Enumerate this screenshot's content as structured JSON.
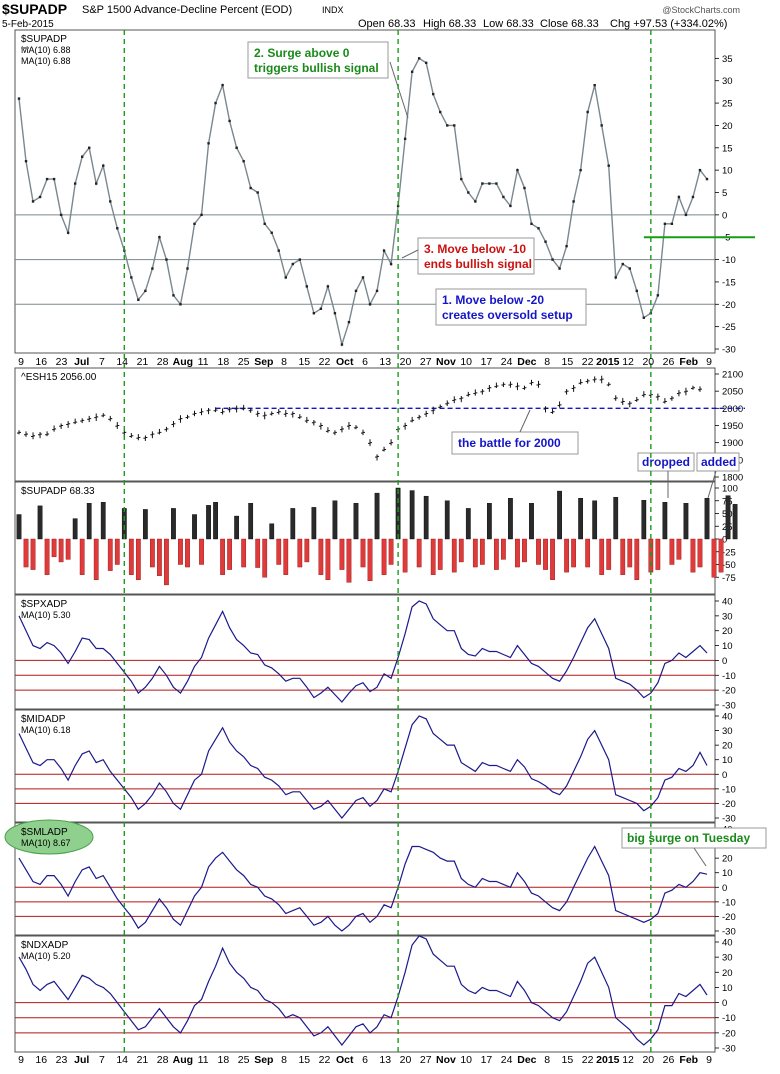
{
  "header": {
    "symbol": "$SUPADP",
    "description": "S&P 1500 Advance-Decline Percent (EOD)",
    "exchange": "INDX",
    "date": "5-Feb-2015",
    "open": "Open 68.33",
    "high": "High 68.33",
    "low": "Low 68.33",
    "close": "Close 68.33",
    "chg": "Chg +97.53 (+334.02%)",
    "watermark": "@StockCharts.com"
  },
  "x_axis": {
    "labels": [
      "9",
      "16",
      "23",
      "Jul",
      "7",
      "14",
      "21",
      "28",
      "Aug",
      "11",
      "18",
      "25",
      "Sep",
      "8",
      "15",
      "22",
      "Oct",
      "6",
      "13",
      "20",
      "27",
      "Nov",
      "10",
      "17",
      "24",
      "Dec",
      "8",
      "15",
      "22",
      "2015",
      "12",
      "20",
      "26",
      "Feb",
      "9"
    ],
    "bold": [
      "Jul",
      "Aug",
      "Sep",
      "Oct",
      "Nov",
      "Dec",
      "2015",
      "Feb"
    ]
  },
  "vlines": [
    15,
    54,
    90
  ],
  "colors": {
    "gray_line": "#7a878e",
    "navy_line": "#1a1a8c",
    "green_dash": "#1a9c1a",
    "blue_dash": "#1515c8",
    "red_bar": "#e03a3a",
    "black_bar": "#2a2a2a",
    "red_hline": "#b01818",
    "green_bubble": "#8fd08f"
  },
  "chart_data": [
    {
      "type": "line",
      "name": "supadp-ma10",
      "legend": [
        "$SUPADP",
        "MA(10) 6.88",
        "MA(10) 6.88"
      ],
      "ylim": [
        -30,
        40
      ],
      "yticks": [
        35,
        30,
        25,
        20,
        15,
        10,
        5,
        0,
        -5,
        -10,
        -15,
        -20,
        -25,
        -30
      ],
      "hlines": [
        0,
        -10,
        -20
      ],
      "green_line_level": -5,
      "values": [
        26,
        12,
        3,
        4,
        8,
        8,
        0,
        -4,
        7,
        13,
        15,
        7,
        11,
        3,
        -3,
        -8,
        -14,
        -19,
        -17,
        -12,
        -5,
        -10,
        -18,
        -20,
        -12,
        -2,
        0,
        16,
        25,
        29,
        21,
        15,
        12,
        6,
        5,
        -2,
        -4,
        -8,
        -14,
        -11,
        -10,
        -16,
        -22,
        -21,
        -16,
        -22,
        -29,
        -24,
        -17,
        -14,
        -20,
        -17,
        -8,
        -11,
        2,
        17,
        32,
        35,
        34,
        27,
        23,
        20,
        20,
        8,
        5,
        3,
        7,
        7,
        7,
        4,
        2,
        10,
        6,
        -2,
        -3,
        -6,
        -10,
        -12,
        -7,
        3,
        10,
        23,
        29,
        20,
        11,
        -14,
        -11,
        -12,
        -17,
        -23,
        -22,
        -18,
        -2,
        -2,
        4,
        0,
        4,
        10,
        8
      ],
      "annotations": [
        {
          "text": [
            "2. Surge above 0",
            "triggers bullish signal"
          ],
          "color": "#1a8a1a",
          "index": 53,
          "value": 20
        },
        {
          "text": [
            "3. Move below -10",
            "ends bullish signal"
          ],
          "color": "#cc1111",
          "index": 52,
          "value": -10
        },
        {
          "text": [
            "1. Move below -20",
            "creates oversold setup"
          ],
          "color": "#1515c8",
          "index": null,
          "value": null
        }
      ]
    },
    {
      "type": "line",
      "name": "esh15",
      "legend": [
        "^ESH15 2056.00"
      ],
      "ylim": [
        1800,
        2100
      ],
      "yticks": [
        2100,
        2050,
        2000,
        1950,
        1900,
        1850,
        1800
      ],
      "dashed_level": 2000,
      "dashed_from_index": 28,
      "annotation": "the battle for 2000",
      "values": [
        1930,
        1925,
        1920,
        1925,
        1925,
        1940,
        1950,
        1955,
        1960,
        1965,
        1970,
        1975,
        1980,
        1970,
        1950,
        1930,
        1920,
        1915,
        1915,
        1925,
        1930,
        1940,
        1955,
        1970,
        1975,
        1985,
        1990,
        1995,
        1995,
        1990,
        1998,
        2000,
        2000,
        1995,
        1985,
        1980,
        1985,
        1990,
        1985,
        1985,
        1975,
        1965,
        1960,
        1950,
        1935,
        1930,
        1940,
        1950,
        1945,
        1930,
        1900,
        1860,
        1880,
        1900,
        1940,
        1950,
        1965,
        1975,
        1985,
        1995,
        2005,
        2015,
        2025,
        2030,
        2040,
        2045,
        2050,
        2060,
        2065,
        2070,
        2070,
        2065,
        2060,
        2075,
        2070,
        2000,
        1990,
        2010,
        2050,
        2060,
        2075,
        2080,
        2085,
        2085,
        2070,
        2030,
        2020,
        2015,
        2025,
        2040,
        2040,
        2035,
        2020,
        2030,
        2045,
        2050,
        2060,
        2056
      ]
    },
    {
      "type": "bar",
      "name": "supadp-daily",
      "legend": [
        "$SUPADP 68.33"
      ],
      "ylim": [
        -100,
        100
      ],
      "yticks": [
        100,
        75,
        50,
        25,
        0,
        -25,
        -50,
        -75
      ],
      "annotations": [
        "dropped",
        "added"
      ],
      "values": [
        48,
        -55,
        -60,
        65,
        -70,
        -35,
        -45,
        -40,
        40,
        -70,
        70,
        -80,
        72,
        -62,
        -50,
        60,
        -70,
        -80,
        58,
        -55,
        -72,
        -90,
        60,
        -50,
        -55,
        48,
        -50,
        66,
        72,
        -70,
        -60,
        45,
        -55,
        70,
        -56,
        -75,
        30,
        -50,
        -70,
        60,
        -55,
        -45,
        62,
        -70,
        -80,
        75,
        -60,
        -85,
        70,
        -55,
        -82,
        90,
        -70,
        -50,
        100,
        -65,
        95,
        -55,
        84,
        -70,
        -60,
        75,
        -65,
        -45,
        60,
        -55,
        -50,
        70,
        -60,
        -40,
        80,
        -55,
        -45,
        70,
        -50,
        -60,
        -80,
        94,
        -65,
        -55,
        80,
        -55,
        75,
        -70,
        -60,
        82,
        -70,
        -55,
        -80,
        76,
        -65,
        -60,
        72,
        -50,
        -40,
        70,
        -65,
        -55,
        80,
        -75,
        -65,
        85,
        68
      ],
      "last_value": 68.33
    },
    {
      "type": "line",
      "name": "spxadp",
      "legend": [
        "$SPXADP",
        "MA(10) 5.30"
      ],
      "ylim": [
        -30,
        40
      ],
      "yticks": [
        40,
        30,
        20,
        10,
        0,
        -10,
        -20,
        -30
      ],
      "hlines": [
        0,
        -10,
        -20
      ],
      "values": [
        30,
        20,
        10,
        8,
        12,
        10,
        5,
        -2,
        6,
        15,
        14,
        8,
        8,
        4,
        -2,
        -8,
        -14,
        -22,
        -18,
        -12,
        -4,
        -10,
        -18,
        -22,
        -14,
        -4,
        2,
        15,
        24,
        33,
        22,
        14,
        10,
        5,
        4,
        -3,
        -5,
        -9,
        -14,
        -12,
        -12,
        -18,
        -25,
        -22,
        -18,
        -23,
        -28,
        -22,
        -17,
        -15,
        -21,
        -18,
        -9,
        -12,
        2,
        18,
        36,
        40,
        38,
        28,
        24,
        20,
        20,
        8,
        4,
        3,
        8,
        6,
        6,
        4,
        2,
        10,
        4,
        -2,
        -4,
        -8,
        -12,
        -14,
        -7,
        2,
        12,
        22,
        28,
        18,
        8,
        -12,
        -14,
        -16,
        -20,
        -25,
        -22,
        -15,
        -2,
        0,
        5,
        2,
        6,
        10,
        5
      ]
    },
    {
      "type": "line",
      "name": "midadp",
      "legend": [
        "$MIDADP",
        "MA(10) 6.18"
      ],
      "ylim": [
        -30,
        40
      ],
      "yticks": [
        40,
        30,
        20,
        10,
        0,
        -10,
        -20,
        -30
      ],
      "hlines": [
        0,
        -10,
        -20
      ],
      "values": [
        28,
        18,
        8,
        6,
        10,
        10,
        4,
        -4,
        6,
        14,
        16,
        8,
        10,
        2,
        -4,
        -10,
        -16,
        -24,
        -20,
        -14,
        -6,
        -12,
        -20,
        -24,
        -14,
        -4,
        0,
        16,
        24,
        32,
        22,
        16,
        12,
        6,
        4,
        -2,
        -4,
        -8,
        -14,
        -12,
        -12,
        -18,
        -24,
        -22,
        -18,
        -24,
        -30,
        -24,
        -18,
        -16,
        -22,
        -18,
        -10,
        -12,
        2,
        18,
        34,
        40,
        38,
        28,
        24,
        20,
        20,
        8,
        5,
        2,
        8,
        6,
        6,
        4,
        2,
        10,
        5,
        -3,
        -5,
        -8,
        -12,
        -14,
        -8,
        2,
        12,
        24,
        30,
        20,
        10,
        -14,
        -16,
        -18,
        -20,
        -25,
        -22,
        -16,
        -4,
        -2,
        4,
        2,
        6,
        15,
        6
      ]
    },
    {
      "type": "line",
      "name": "smladp",
      "legend": [
        "$SMLADP",
        "MA(10) 8.67"
      ],
      "ylim": [
        -30,
        40
      ],
      "yticks": [
        40,
        30,
        20,
        10,
        0,
        -10,
        -20,
        -30
      ],
      "hlines": [
        0,
        -10,
        -20
      ],
      "annotation": "big surge on Tuesday",
      "values": [
        20,
        12,
        4,
        2,
        8,
        8,
        2,
        -6,
        4,
        12,
        14,
        6,
        8,
        0,
        -8,
        -14,
        -20,
        -28,
        -24,
        -16,
        -8,
        -14,
        -22,
        -26,
        -16,
        -6,
        0,
        14,
        20,
        24,
        18,
        12,
        8,
        2,
        0,
        -6,
        -8,
        -12,
        -18,
        -16,
        -14,
        -20,
        -26,
        -24,
        -20,
        -26,
        -30,
        -26,
        -20,
        -18,
        -24,
        -20,
        -12,
        -14,
        0,
        16,
        28,
        28,
        26,
        24,
        20,
        18,
        18,
        6,
        2,
        0,
        6,
        4,
        4,
        2,
        0,
        10,
        4,
        -4,
        -6,
        -10,
        -14,
        -16,
        -10,
        0,
        10,
        20,
        28,
        18,
        8,
        -16,
        -18,
        -20,
        -22,
        -24,
        -22,
        -18,
        -4,
        -2,
        2,
        0,
        4,
        10,
        9
      ]
    },
    {
      "type": "line",
      "name": "ndxadp",
      "legend": [
        "$NDXADP",
        "MA(10) 5.20"
      ],
      "ylim": [
        -30,
        40
      ],
      "yticks": [
        40,
        30,
        20,
        10,
        0,
        -10,
        -20,
        -30
      ],
      "hlines": [
        0,
        -10,
        -20
      ],
      "values": [
        30,
        22,
        12,
        8,
        12,
        14,
        8,
        2,
        10,
        18,
        16,
        12,
        10,
        6,
        0,
        -6,
        -12,
        -18,
        -16,
        -10,
        -4,
        -10,
        -16,
        -20,
        -12,
        -2,
        2,
        14,
        24,
        36,
        26,
        20,
        16,
        10,
        8,
        2,
        0,
        -4,
        -10,
        -8,
        -10,
        -16,
        -22,
        -20,
        -16,
        -22,
        -28,
        -22,
        -16,
        -14,
        -20,
        -16,
        -8,
        -10,
        4,
        20,
        38,
        44,
        42,
        32,
        28,
        24,
        24,
        12,
        8,
        6,
        10,
        8,
        8,
        6,
        4,
        14,
        8,
        0,
        -2,
        -6,
        -10,
        -12,
        -6,
        4,
        14,
        26,
        30,
        20,
        10,
        -10,
        -14,
        -18,
        -24,
        -28,
        -24,
        -18,
        -2,
        -2,
        6,
        4,
        8,
        12,
        5
      ]
    }
  ]
}
